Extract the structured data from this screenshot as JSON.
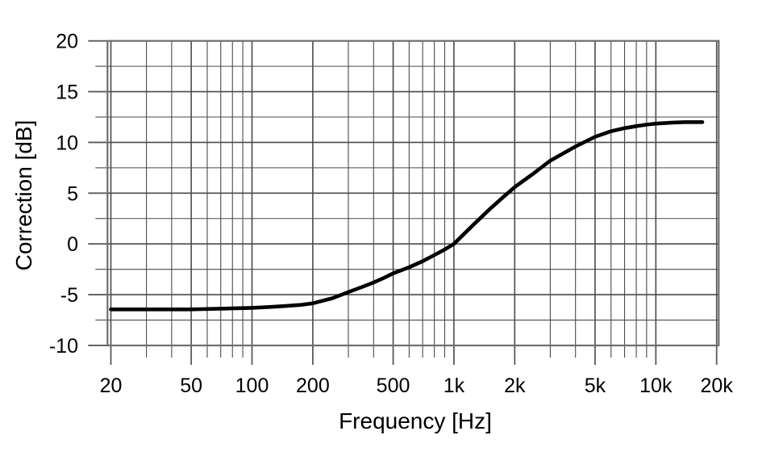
{
  "page": {
    "background_color": "#ffffff",
    "text_color": "#000000"
  },
  "chart_data": {
    "type": "line",
    "title": "",
    "xlabel": "Frequency [Hz]",
    "ylabel": "Correction [dB]",
    "x_scale": "log",
    "x_range": [
      20,
      20000
    ],
    "y_range": [
      -10,
      20
    ],
    "grid": "on",
    "legend": "none",
    "x_major_ticks": [
      {
        "value": 20,
        "label": "20"
      },
      {
        "value": 50,
        "label": "50"
      },
      {
        "value": 100,
        "label": "100"
      },
      {
        "value": 200,
        "label": "200"
      },
      {
        "value": 500,
        "label": "500"
      },
      {
        "value": 1000,
        "label": "1k"
      },
      {
        "value": 2000,
        "label": "2k"
      },
      {
        "value": 5000,
        "label": "5k"
      },
      {
        "value": 10000,
        "label": "10k"
      },
      {
        "value": 20000,
        "label": "20k"
      }
    ],
    "x_minor_gridlines": [
      30,
      40,
      60,
      70,
      80,
      90,
      300,
      400,
      600,
      700,
      800,
      900,
      3000,
      4000,
      6000,
      7000,
      8000,
      9000
    ],
    "y_major_ticks": [
      {
        "value": 20,
        "label": "20"
      },
      {
        "value": 15,
        "label": "15"
      },
      {
        "value": 10,
        "label": "10"
      },
      {
        "value": 5,
        "label": "5"
      },
      {
        "value": 0,
        "label": "0"
      },
      {
        "value": -5,
        "label": "-5"
      },
      {
        "value": -10,
        "label": "-10"
      }
    ],
    "y_minor_gridlines": [
      17.5,
      12.5,
      7.5,
      2.5,
      -2.5,
      -7.5
    ],
    "series": [
      {
        "name": "correction-curve",
        "color": "#000000",
        "points": [
          [
            20,
            -6.45
          ],
          [
            30,
            -6.45
          ],
          [
            40,
            -6.45
          ],
          [
            50,
            -6.45
          ],
          [
            63,
            -6.4
          ],
          [
            80,
            -6.35
          ],
          [
            100,
            -6.3
          ],
          [
            125,
            -6.2
          ],
          [
            150,
            -6.1
          ],
          [
            175,
            -6.0
          ],
          [
            200,
            -5.85
          ],
          [
            250,
            -5.35
          ],
          [
            300,
            -4.75
          ],
          [
            350,
            -4.25
          ],
          [
            400,
            -3.8
          ],
          [
            450,
            -3.35
          ],
          [
            500,
            -2.9
          ],
          [
            600,
            -2.3
          ],
          [
            700,
            -1.7
          ],
          [
            800,
            -1.1
          ],
          [
            900,
            -0.55
          ],
          [
            1000,
            0.0
          ],
          [
            1250,
            1.9
          ],
          [
            1500,
            3.4
          ],
          [
            1750,
            4.6
          ],
          [
            2000,
            5.6
          ],
          [
            2500,
            7.0
          ],
          [
            3000,
            8.2
          ],
          [
            3500,
            8.95
          ],
          [
            4000,
            9.6
          ],
          [
            5000,
            10.55
          ],
          [
            6000,
            11.1
          ],
          [
            7000,
            11.4
          ],
          [
            8000,
            11.6
          ],
          [
            9000,
            11.75
          ],
          [
            10000,
            11.85
          ],
          [
            12000,
            11.95
          ],
          [
            14000,
            12.0
          ],
          [
            17000,
            12.0
          ]
        ]
      }
    ],
    "grid_color": "#4a4a4a",
    "frame_color": "#6e6e6e"
  }
}
